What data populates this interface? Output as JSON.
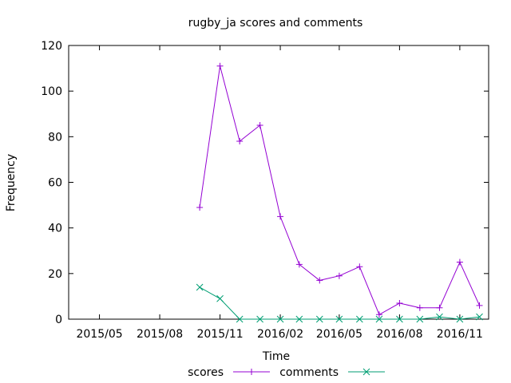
{
  "chart_data": {
    "type": "line",
    "title": "rugby_ja scores and comments",
    "xlabel": "Time",
    "ylabel": "Frequency",
    "ylim": [
      0,
      120
    ],
    "xlim": [
      "2015-03-15",
      "2016-12-15"
    ],
    "yticks": [
      0,
      20,
      40,
      60,
      80,
      100,
      120
    ],
    "xticks": [
      {
        "date": "2015-05-01",
        "label": "2015/05"
      },
      {
        "date": "2015-08-01",
        "label": "2015/08"
      },
      {
        "date": "2015-11-01",
        "label": "2015/11"
      },
      {
        "date": "2016-02-01",
        "label": "2016/02"
      },
      {
        "date": "2016-05-01",
        "label": "2016/05"
      },
      {
        "date": "2016-08-01",
        "label": "2016/08"
      },
      {
        "date": "2016-11-01",
        "label": "2016/11"
      }
    ],
    "grid": false,
    "legend_position": "bottom",
    "x": [
      "2015-10-01",
      "2015-11-01",
      "2015-12-01",
      "2016-01-01",
      "2016-02-01",
      "2016-03-01",
      "2016-04-01",
      "2016-05-01",
      "2016-06-01",
      "2016-07-01",
      "2016-08-01",
      "2016-09-01",
      "2016-10-01",
      "2016-11-01",
      "2016-12-01"
    ],
    "series": [
      {
        "name": "scores",
        "color": "#9400d3",
        "marker": "plus",
        "values": [
          49,
          111,
          78,
          85,
          45,
          24,
          17,
          19,
          23,
          2,
          7,
          5,
          5,
          25,
          6
        ]
      },
      {
        "name": "comments",
        "color": "#009e73",
        "marker": "cross",
        "values": [
          14,
          9,
          0,
          0,
          0,
          0,
          0,
          0,
          0,
          0,
          0,
          0,
          1,
          0,
          1
        ]
      }
    ]
  }
}
